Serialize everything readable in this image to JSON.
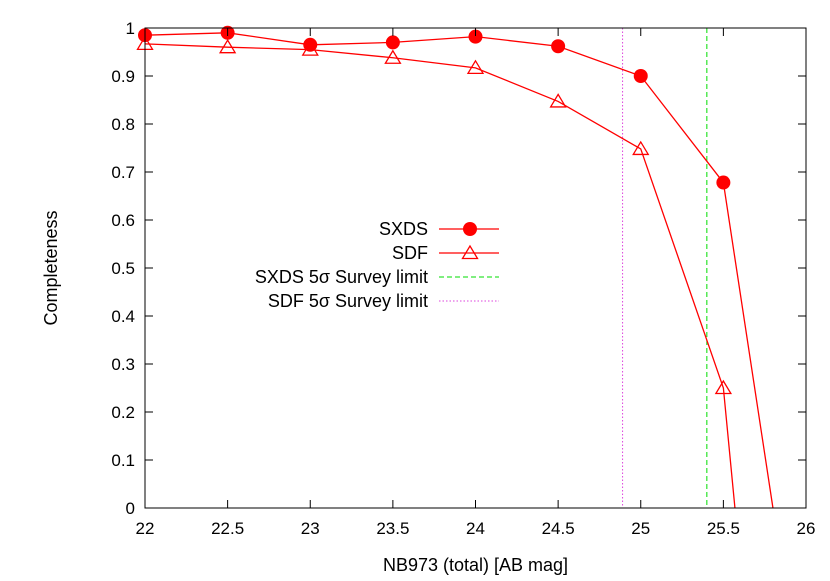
{
  "chart_data": {
    "type": "line",
    "xlabel": "NB973 (total) [AB mag]",
    "ylabel": "Completeness",
    "xlim": [
      22,
      26
    ],
    "ylim": [
      0,
      1
    ],
    "xticks": [
      "22",
      "22.5",
      "23",
      "23.5",
      "24",
      "24.5",
      "25",
      "25.5",
      "26"
    ],
    "yticks": [
      "0",
      "0.1",
      "0.2",
      "0.3",
      "0.4",
      "0.5",
      "0.6",
      "0.7",
      "0.8",
      "0.9",
      "1"
    ],
    "grid": false,
    "legend_position": "center",
    "series": [
      {
        "name": "SXDS",
        "marker": "filled-circle",
        "color": "#ff0000",
        "x": [
          22,
          22.5,
          23,
          23.5,
          24,
          24.5,
          25,
          25.5,
          25.8
        ],
        "y": [
          0.985,
          0.99,
          0.965,
          0.97,
          0.982,
          0.962,
          0.9,
          0.678,
          0.0
        ]
      },
      {
        "name": "SDF",
        "marker": "open-triangle",
        "color": "#ff0000",
        "x": [
          22,
          22.5,
          23,
          23.5,
          24,
          24.5,
          25,
          25.5,
          25.57
        ],
        "y": [
          0.967,
          0.96,
          0.955,
          0.938,
          0.917,
          0.847,
          0.748,
          0.25,
          0.0
        ]
      }
    ],
    "vlines": [
      {
        "name": "SXDS 5σ Survey limit",
        "x": 25.4,
        "color": "#00dd00",
        "style": "dashed"
      },
      {
        "name": "SDF 5σ Survey limit",
        "x": 24.89,
        "color": "#dd44dd",
        "style": "dotted"
      }
    ]
  }
}
